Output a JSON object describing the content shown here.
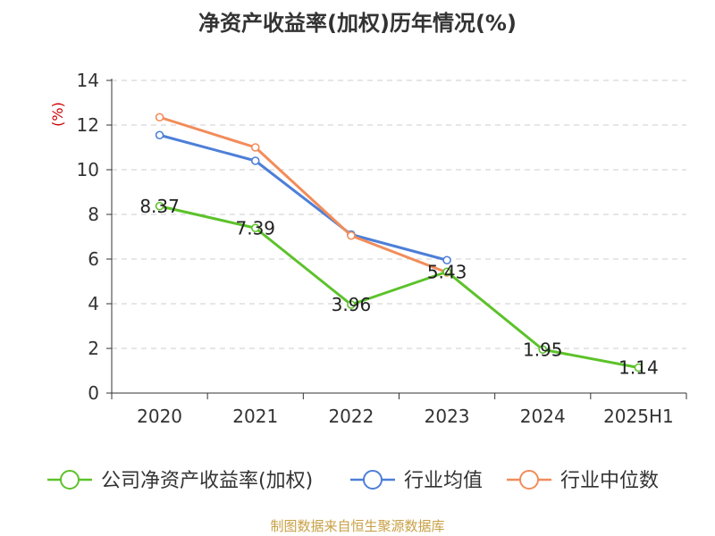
{
  "chart_data": {
    "type": "line",
    "title": "净资产收益率(加权)历年情况(%)",
    "ylabel": "(%)",
    "ylabel_color": "#cc0000",
    "categories": [
      "2020",
      "2021",
      "2022",
      "2023",
      "2024",
      "2025H1"
    ],
    "ylim": [
      0,
      14
    ],
    "yticks": [
      0,
      2,
      4,
      6,
      8,
      10,
      12,
      14
    ],
    "grid": true,
    "legend_position": "bottom",
    "series": [
      {
        "name": "公司净资产收益率(加权)",
        "color": "#5cc22a",
        "values": [
          8.37,
          7.39,
          3.96,
          5.43,
          1.95,
          1.14
        ],
        "data_labels": [
          "8.37",
          "7.39",
          "3.96",
          "5.43",
          "1.95",
          "1.14"
        ]
      },
      {
        "name": "行业均值",
        "color": "#4d7fd8",
        "values": [
          11.55,
          10.4,
          7.1,
          5.95,
          null,
          null
        ]
      },
      {
        "name": "行业中位数",
        "color": "#f28c5a",
        "values": [
          12.35,
          11.0,
          7.05,
          5.4,
          null,
          null
        ]
      }
    ]
  },
  "source_note": "制图数据来自恒生聚源数据库"
}
